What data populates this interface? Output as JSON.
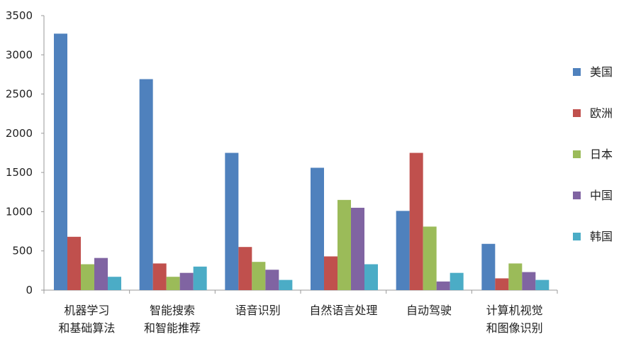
{
  "chart_data": {
    "type": "bar",
    "categories": [
      [
        "机器学习",
        "和基础算法"
      ],
      [
        "智能搜索",
        "和智能推荐"
      ],
      [
        "语音识别"
      ],
      [
        "自然语言处理"
      ],
      [
        "自动驾驶"
      ],
      [
        "计算机视觉",
        "和图像识别"
      ]
    ],
    "series": [
      {
        "name": "美国",
        "color": "#4f81bd",
        "values": [
          3270,
          2690,
          1750,
          1560,
          1010,
          590
        ]
      },
      {
        "name": "欧洲",
        "color": "#c0504d",
        "values": [
          680,
          340,
          550,
          430,
          1750,
          150
        ]
      },
      {
        "name": "日本",
        "color": "#9bbb59",
        "values": [
          330,
          170,
          360,
          1150,
          810,
          340
        ]
      },
      {
        "name": "中国",
        "color": "#8064a2",
        "values": [
          410,
          220,
          260,
          1050,
          110,
          230
        ]
      },
      {
        "name": "韩国",
        "color": "#4bacc6",
        "values": [
          170,
          300,
          130,
          330,
          220,
          130
        ]
      }
    ],
    "ylim": [
      0,
      3500
    ],
    "yticks": [
      0,
      500,
      1000,
      1500,
      2000,
      2500,
      3000,
      3500
    ],
    "legend_position": "right",
    "grid": false
  }
}
